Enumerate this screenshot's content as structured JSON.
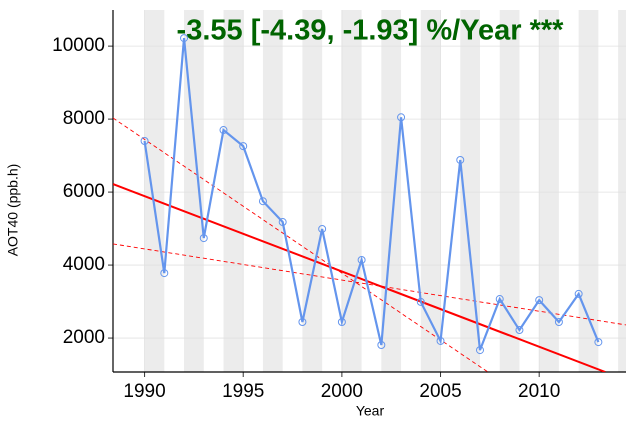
{
  "chart_data": {
    "type": "line",
    "title": "-3.55 [-4.39, -1.93] %/Year ***",
    "title_color": "#006400",
    "x_label": "Year",
    "y_label": "AOT40 (ppb.h)",
    "x": [
      1990,
      1991,
      1992,
      1993,
      1994,
      1995,
      1996,
      1997,
      1998,
      1999,
      2000,
      2001,
      2002,
      2003,
      2004,
      2005,
      2006,
      2007,
      2008,
      2009,
      2010,
      2011,
      2012,
      2013
    ],
    "series": [
      {
        "color": "#6495ed",
        "values": [
          7400,
          3780,
          10220,
          4740,
          7700,
          7260,
          5750,
          5180,
          2440,
          4990,
          2440,
          4140,
          1810,
          8050,
          2990,
          1920,
          6880,
          1670,
          3070,
          2220,
          3040,
          2440,
          3210,
          1890
        ]
      }
    ],
    "trend_lines": [
      {
        "x": [
          1988.4,
          2013.35
        ],
        "values": [
          6220,
          1070
        ],
        "color": "#ff0000",
        "dashed": false
      },
      {
        "x": [
          1988.4,
          2007.4
        ],
        "values": [
          8030,
          1070
        ],
        "color": "#ff0000",
        "dashed": true
      },
      {
        "x": [
          1988.4,
          2014.4
        ],
        "values": [
          4580,
          2360
        ],
        "color": "#ff0000",
        "dashed": true
      }
    ],
    "xlim": [
      1988.4,
      2014.4
    ],
    "ylim": [
      1070,
      10990
    ],
    "xticks": [
      1990,
      1995,
      2000,
      2005,
      2010
    ],
    "yticks": [
      2000,
      4000,
      6000,
      8000,
      10000
    ],
    "grid": true,
    "stripes": true
  }
}
